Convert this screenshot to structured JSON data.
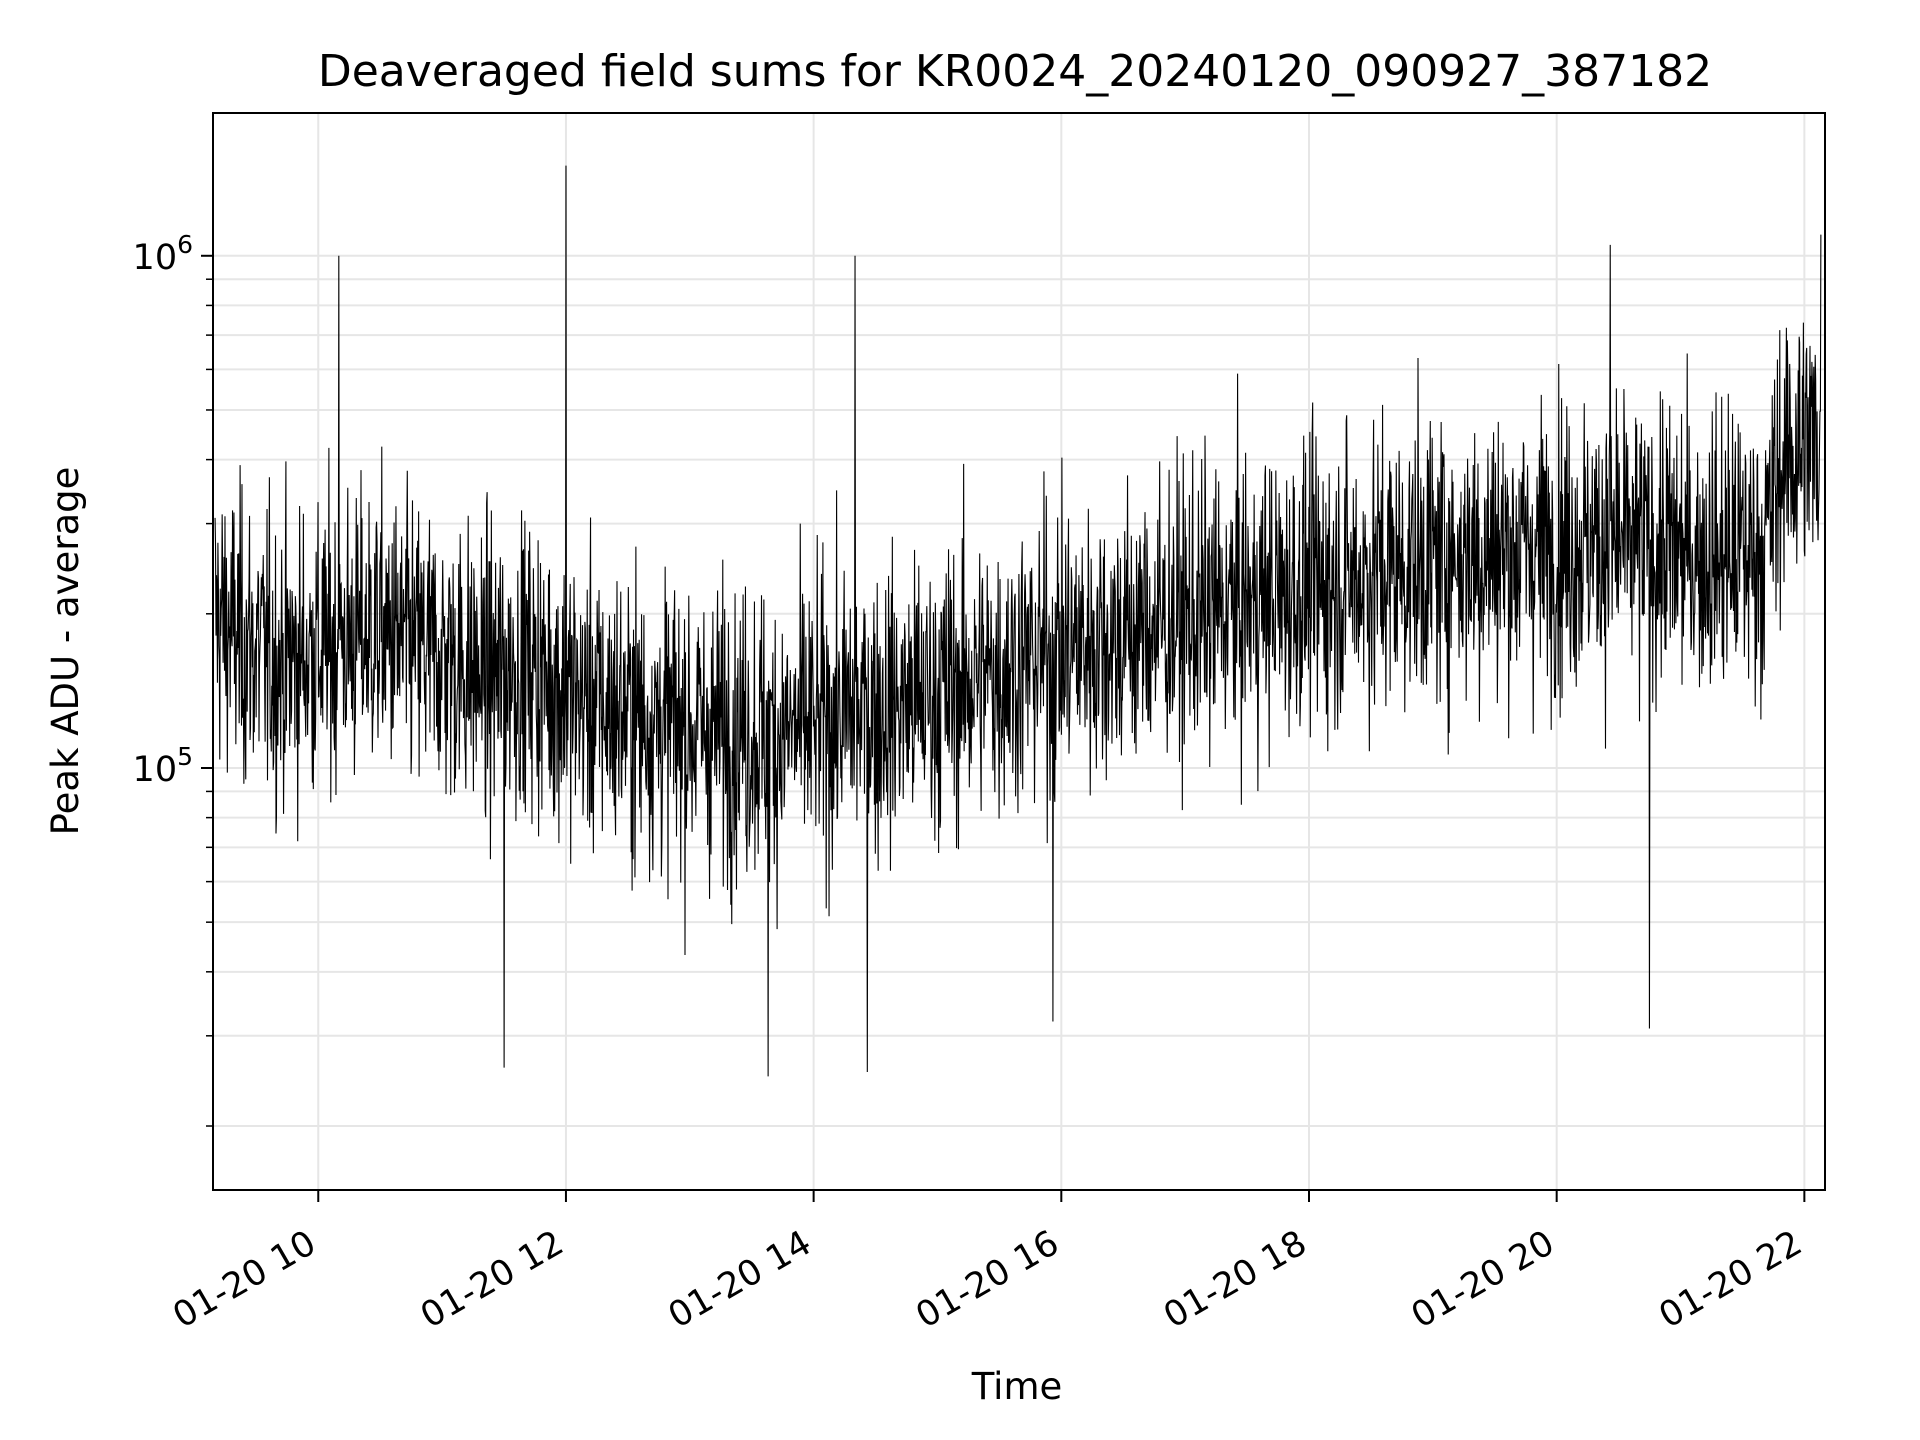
{
  "chart_data": {
    "type": "line",
    "title": "Deaveraged field sums for KR0024_20240120_090927_387182",
    "xlabel": "Time",
    "ylabel": "Peak ADU - average",
    "yscale": "log",
    "grid": "on (major and minor)",
    "line_color": "#000000",
    "x_tick_labels": [
      "01-20 10",
      "01-20 12",
      "01-20 14",
      "01-20 16",
      "01-20 18",
      "01-20 20",
      "01-20 22"
    ],
    "y_tick_labels": [
      {
        "base": "10",
        "exp": "5"
      },
      {
        "base": "10",
        "exp": "6"
      }
    ],
    "xlim": [
      "2024-01-20 09:09",
      "2024-01-20 22:10"
    ],
    "ylim": [
      15000,
      1900000
    ],
    "series": [
      {
        "x": [
          "2024-01-20 09:10",
          "2024-01-20 09:20",
          "2024-01-20 09:30",
          "2024-01-20 09:40",
          "2024-01-20 09:50",
          "2024-01-20 10:00",
          "2024-01-20 10:10",
          "2024-01-20 10:20",
          "2024-01-20 10:30",
          "2024-01-20 10:40",
          "2024-01-20 10:50",
          "2024-01-20 11:00",
          "2024-01-20 11:10",
          "2024-01-20 11:20",
          "2024-01-20 11:30",
          "2024-01-20 11:40",
          "2024-01-20 11:50",
          "2024-01-20 12:00",
          "2024-01-20 12:10",
          "2024-01-20 12:20",
          "2024-01-20 12:30",
          "2024-01-20 12:40",
          "2024-01-20 12:50",
          "2024-01-20 13:00",
          "2024-01-20 13:10",
          "2024-01-20 13:20",
          "2024-01-20 13:30",
          "2024-01-20 13:40",
          "2024-01-20 13:50",
          "2024-01-20 14:00",
          "2024-01-20 14:10",
          "2024-01-20 14:20",
          "2024-01-20 14:30",
          "2024-01-20 14:40",
          "2024-01-20 14:50",
          "2024-01-20 15:00",
          "2024-01-20 15:10",
          "2024-01-20 15:20",
          "2024-01-20 15:30",
          "2024-01-20 15:40",
          "2024-01-20 15:50",
          "2024-01-20 16:00",
          "2024-01-20 16:10",
          "2024-01-20 16:20",
          "2024-01-20 16:30",
          "2024-01-20 16:40",
          "2024-01-20 16:50",
          "2024-01-20 17:00",
          "2024-01-20 17:10",
          "2024-01-20 17:20",
          "2024-01-20 17:30",
          "2024-01-20 17:40",
          "2024-01-20 17:50",
          "2024-01-20 18:00",
          "2024-01-20 18:10",
          "2024-01-20 18:20",
          "2024-01-20 18:30",
          "2024-01-20 18:40",
          "2024-01-20 18:50",
          "2024-01-20 19:00",
          "2024-01-20 19:10",
          "2024-01-20 19:20",
          "2024-01-20 19:30",
          "2024-01-20 19:40",
          "2024-01-20 19:50",
          "2024-01-20 20:00",
          "2024-01-20 20:10",
          "2024-01-20 20:20",
          "2024-01-20 20:30",
          "2024-01-20 20:40",
          "2024-01-20 20:50",
          "2024-01-20 21:00",
          "2024-01-20 21:10",
          "2024-01-20 21:20",
          "2024-01-20 21:30",
          "2024-01-20 21:40",
          "2024-01-20 21:50",
          "2024-01-20 22:00",
          "2024-01-20 22:08"
        ],
        "y": [
          200000,
          180000,
          170000,
          160000,
          165000,
          170000,
          175000,
          180000,
          185000,
          175000,
          170000,
          165000,
          160000,
          150000,
          155000,
          160000,
          150000,
          140000,
          135000,
          130000,
          128000,
          125000,
          122000,
          120000,
          118000,
          120000,
          118000,
          115000,
          118000,
          120000,
          125000,
          128000,
          130000,
          132000,
          135000,
          140000,
          145000,
          150000,
          155000,
          160000,
          165000,
          170000,
          175000,
          178000,
          182000,
          188000,
          192000,
          196000,
          200000,
          205000,
          210000,
          215000,
          220000,
          225000,
          230000,
          235000,
          240000,
          245000,
          250000,
          255000,
          260000,
          262000,
          265000,
          268000,
          270000,
          272000,
          275000,
          275000,
          272000,
          270000,
          268000,
          265000,
          262000,
          260000,
          265000,
          270000,
          400000,
          430000,
          440000
        ],
        "noise_min_ratio": 0.25,
        "noise_max_ratio": 4.0,
        "spikes": [
          {
            "x": "2024-01-20 12:00",
            "y": 1500000
          },
          {
            "x": "2024-01-20 14:20",
            "y": 1000000
          },
          {
            "x": "2024-01-20 10:10",
            "y": 1000000
          },
          {
            "x": "2024-01-20 20:26",
            "y": 1050000
          },
          {
            "x": "2024-01-20 22:09",
            "y": 1100000
          },
          {
            "x": "2024-01-20 11:30",
            "y": 26000
          },
          {
            "x": "2024-01-20 13:38",
            "y": 25000
          },
          {
            "x": "2024-01-20 14:26",
            "y": 25500
          },
          {
            "x": "2024-01-20 20:45",
            "y": 31000
          },
          {
            "x": "2024-01-20 15:56",
            "y": 32000
          }
        ]
      }
    ]
  }
}
